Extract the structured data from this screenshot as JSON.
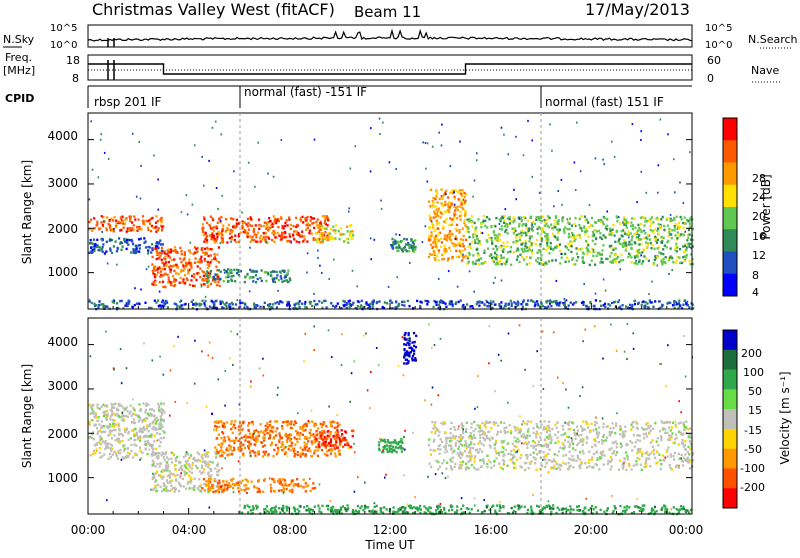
{
  "header": {
    "title": "Christmas Valley West (fitACF)",
    "beam": "Beam 11",
    "date": "17/May/2013"
  },
  "strips": {
    "nsky_label": "N.Sky",
    "nsky_ticks": [
      "10^5",
      "10^0"
    ],
    "nsearch_label": "N.Search",
    "nsearch_ticks": [
      "10^5",
      "10^0"
    ],
    "freq_label": "Freq.",
    "freq_unit": "[MHz]",
    "freq_ticks": [
      "18",
      "8"
    ],
    "nave_label": "Nave",
    "nave_ticks": [
      "60",
      "0"
    ],
    "cpid_label": "CPID",
    "cpid_modes": [
      {
        "name": "rbsp 201 IF",
        "start_h": 0
      },
      {
        "name": "normal (fast) -151 IF",
        "start_h": 6
      },
      {
        "name": "normal (fast) 151 IF",
        "start_h": 18
      }
    ],
    "freq_steps": [
      {
        "start_h": 0,
        "end_h": 3,
        "level": "high"
      },
      {
        "start_h": 3,
        "end_h": 15,
        "level": "low"
      },
      {
        "start_h": 15,
        "end_h": 24,
        "level": "high"
      }
    ]
  },
  "x_axis": {
    "label": "Time UT",
    "ticks": [
      "00:00",
      "04:00",
      "08:00",
      "12:00",
      "16:00",
      "20:00",
      "00:00"
    ]
  },
  "power_panel": {
    "ylabel": "Slant Range [km]",
    "yticks": [
      "4000",
      "3000",
      "2000",
      "1000"
    ],
    "colorbar_title": "Power [dB]",
    "colorbar_ticks": [
      "28",
      "24",
      "20",
      "16",
      "12",
      "8",
      "4"
    ],
    "colorbar_colors": [
      "#ff0000",
      "#ff5a00",
      "#ff9900",
      "#ffe000",
      "#60c850",
      "#2e8b57",
      "#1e50c0",
      "#0000ff"
    ]
  },
  "velocity_panel": {
    "ylabel": "Slant Range [km]",
    "yticks": [
      "4000",
      "3000",
      "2000",
      "1000"
    ],
    "colorbar_title": "Velocity [m s⁻¹]",
    "colorbar_ticks": [
      "200",
      "100",
      "50",
      "15",
      "-15",
      "-50",
      "-100",
      "-200"
    ],
    "colorbar_colors": [
      "#0000c8",
      "#1e6e3c",
      "#2ea84a",
      "#66dd44",
      "#c0c0b8",
      "#ffd400",
      "#ff9900",
      "#ff5000",
      "#ff0000"
    ]
  },
  "chart_data": [
    {
      "type": "heatmap",
      "title": "Power",
      "xlabel": "Time UT",
      "ylabel": "Slant Range [km]",
      "xlim": [
        0,
        24
      ],
      "ylim": [
        180,
        4600
      ],
      "colorbar": {
        "label": "Power [dB]",
        "range": [
          0,
          32
        ]
      },
      "regions": [
        {
          "t0": 0,
          "t1": 3,
          "r0": 1950,
          "r1": 2300,
          "power": 28
        },
        {
          "t0": 0,
          "t1": 3,
          "r0": 1450,
          "r1": 1800,
          "power": 8
        },
        {
          "t0": 2.5,
          "t1": 5.2,
          "r0": 700,
          "r1": 1600,
          "power": 28
        },
        {
          "t0": 4.5,
          "t1": 9.5,
          "r0": 1700,
          "r1": 2300,
          "power": 28
        },
        {
          "t0": 9,
          "t1": 10.5,
          "r0": 1700,
          "r1": 2100,
          "power": 20
        },
        {
          "t0": 4.5,
          "t1": 8,
          "r0": 800,
          "r1": 1100,
          "power": 12
        },
        {
          "t0": 12,
          "t1": 13,
          "r0": 1500,
          "r1": 1800,
          "power": 12
        },
        {
          "t0": 13.5,
          "t1": 15,
          "r0": 1300,
          "r1": 2900,
          "power": 24
        },
        {
          "t0": 15,
          "t1": 24,
          "r0": 1200,
          "r1": 2300,
          "power": 16
        },
        {
          "t0": 0,
          "t1": 24,
          "r0": 200,
          "r1": 400,
          "power": 8
        }
      ]
    },
    {
      "type": "heatmap",
      "title": "Velocity",
      "xlabel": "Time UT",
      "ylabel": "Slant Range [km]",
      "xlim": [
        0,
        24
      ],
      "ylim": [
        180,
        4600
      ],
      "colorbar": {
        "label": "Velocity [m s⁻¹]",
        "range": [
          -200,
          200
        ]
      },
      "regions": [
        {
          "t0": 0,
          "t1": 3,
          "r0": 1450,
          "r1": 2700,
          "velocity": 0
        },
        {
          "t0": 2.5,
          "t1": 5.2,
          "r0": 700,
          "r1": 1600,
          "velocity": 0
        },
        {
          "t0": 4.5,
          "t1": 9,
          "r0": 700,
          "r1": 1000,
          "velocity": -100
        },
        {
          "t0": 5,
          "t1": 10,
          "r0": 1500,
          "r1": 2300,
          "velocity": -100
        },
        {
          "t0": 9,
          "t1": 10.5,
          "r0": 1700,
          "r1": 2100,
          "velocity": -150
        },
        {
          "t0": 11.5,
          "t1": 12.5,
          "r0": 1600,
          "r1": 1900,
          "velocity": 50
        },
        {
          "t0": 12.5,
          "t1": 13,
          "r0": 3600,
          "r1": 4300,
          "velocity": 200
        },
        {
          "t0": 13.5,
          "t1": 24,
          "r0": 1200,
          "r1": 2300,
          "velocity": 0
        },
        {
          "t0": 6,
          "t1": 24,
          "r0": 200,
          "r1": 400,
          "velocity": 60
        }
      ]
    }
  ]
}
